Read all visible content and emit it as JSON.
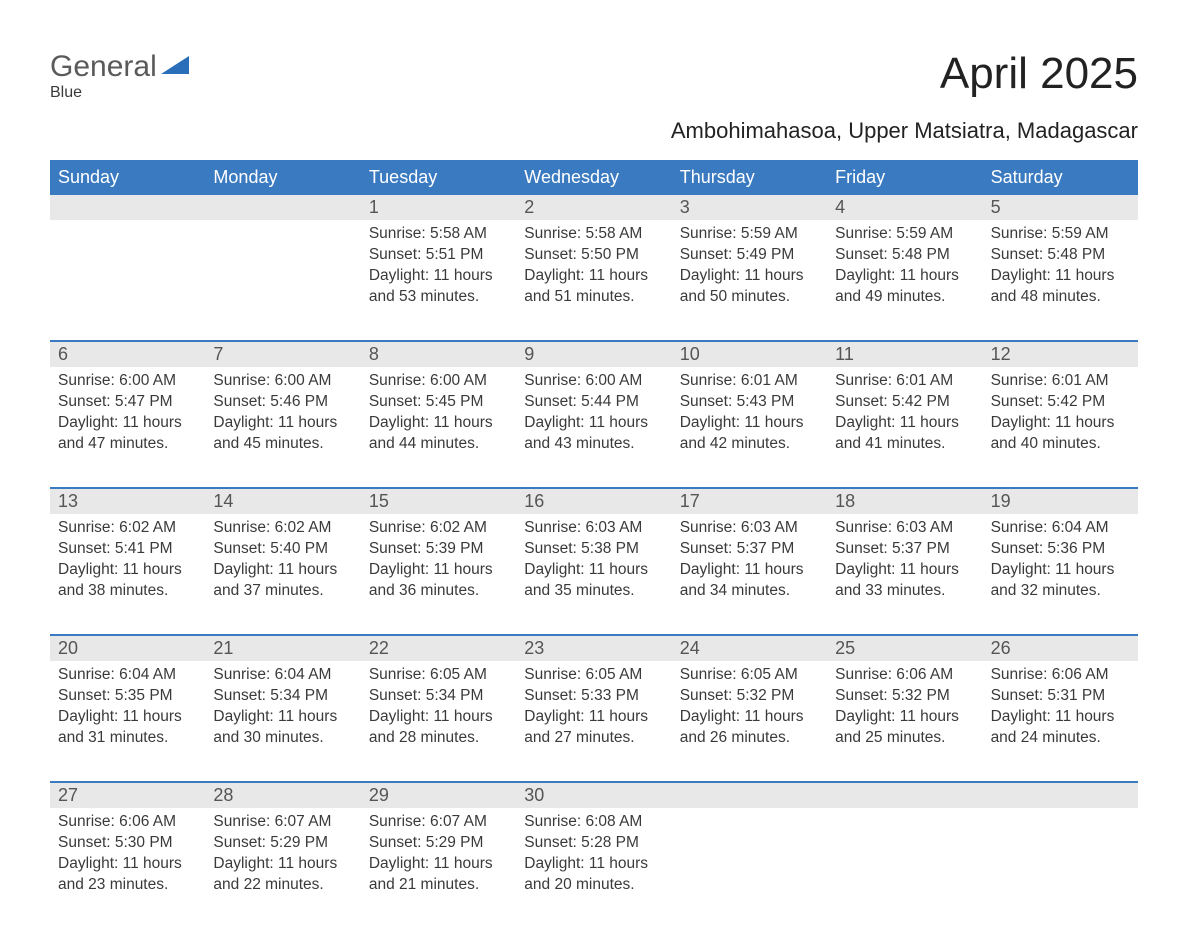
{
  "logo": {
    "general": "General",
    "blue": "Blue"
  },
  "title": "April 2025",
  "subtitle": "Ambohimahasoa, Upper Matsiatra, Madagascar",
  "colors": {
    "header_bg": "#3a7ac0",
    "header_text": "#ffffff",
    "row_border": "#3a7ac0",
    "daynum_bg": "#e8e8e8",
    "text": "#3a3a3a",
    "logo_gray": "#5a5a5a",
    "logo_blue": "#2a6db8",
    "page_bg": "#ffffff"
  },
  "fonts": {
    "title_pt": 44,
    "subtitle_pt": 22,
    "dayheader_pt": 18,
    "daynum_pt": 18,
    "cell_pt": 15.5,
    "family": "Segoe UI, Arial, sans-serif"
  },
  "day_names": [
    "Sunday",
    "Monday",
    "Tuesday",
    "Wednesday",
    "Thursday",
    "Friday",
    "Saturday"
  ],
  "labels": {
    "sunrise": "Sunrise: ",
    "sunset": "Sunset: ",
    "daylight": "Daylight: "
  },
  "weeks": [
    [
      null,
      null,
      {
        "n": "1",
        "sunrise": "5:58 AM",
        "sunset": "5:51 PM",
        "daylight": "11 hours and 53 minutes."
      },
      {
        "n": "2",
        "sunrise": "5:58 AM",
        "sunset": "5:50 PM",
        "daylight": "11 hours and 51 minutes."
      },
      {
        "n": "3",
        "sunrise": "5:59 AM",
        "sunset": "5:49 PM",
        "daylight": "11 hours and 50 minutes."
      },
      {
        "n": "4",
        "sunrise": "5:59 AM",
        "sunset": "5:48 PM",
        "daylight": "11 hours and 49 minutes."
      },
      {
        "n": "5",
        "sunrise": "5:59 AM",
        "sunset": "5:48 PM",
        "daylight": "11 hours and 48 minutes."
      }
    ],
    [
      {
        "n": "6",
        "sunrise": "6:00 AM",
        "sunset": "5:47 PM",
        "daylight": "11 hours and 47 minutes."
      },
      {
        "n": "7",
        "sunrise": "6:00 AM",
        "sunset": "5:46 PM",
        "daylight": "11 hours and 45 minutes."
      },
      {
        "n": "8",
        "sunrise": "6:00 AM",
        "sunset": "5:45 PM",
        "daylight": "11 hours and 44 minutes."
      },
      {
        "n": "9",
        "sunrise": "6:00 AM",
        "sunset": "5:44 PM",
        "daylight": "11 hours and 43 minutes."
      },
      {
        "n": "10",
        "sunrise": "6:01 AM",
        "sunset": "5:43 PM",
        "daylight": "11 hours and 42 minutes."
      },
      {
        "n": "11",
        "sunrise": "6:01 AM",
        "sunset": "5:42 PM",
        "daylight": "11 hours and 41 minutes."
      },
      {
        "n": "12",
        "sunrise": "6:01 AM",
        "sunset": "5:42 PM",
        "daylight": "11 hours and 40 minutes."
      }
    ],
    [
      {
        "n": "13",
        "sunrise": "6:02 AM",
        "sunset": "5:41 PM",
        "daylight": "11 hours and 38 minutes."
      },
      {
        "n": "14",
        "sunrise": "6:02 AM",
        "sunset": "5:40 PM",
        "daylight": "11 hours and 37 minutes."
      },
      {
        "n": "15",
        "sunrise": "6:02 AM",
        "sunset": "5:39 PM",
        "daylight": "11 hours and 36 minutes."
      },
      {
        "n": "16",
        "sunrise": "6:03 AM",
        "sunset": "5:38 PM",
        "daylight": "11 hours and 35 minutes."
      },
      {
        "n": "17",
        "sunrise": "6:03 AM",
        "sunset": "5:37 PM",
        "daylight": "11 hours and 34 minutes."
      },
      {
        "n": "18",
        "sunrise": "6:03 AM",
        "sunset": "5:37 PM",
        "daylight": "11 hours and 33 minutes."
      },
      {
        "n": "19",
        "sunrise": "6:04 AM",
        "sunset": "5:36 PM",
        "daylight": "11 hours and 32 minutes."
      }
    ],
    [
      {
        "n": "20",
        "sunrise": "6:04 AM",
        "sunset": "5:35 PM",
        "daylight": "11 hours and 31 minutes."
      },
      {
        "n": "21",
        "sunrise": "6:04 AM",
        "sunset": "5:34 PM",
        "daylight": "11 hours and 30 minutes."
      },
      {
        "n": "22",
        "sunrise": "6:05 AM",
        "sunset": "5:34 PM",
        "daylight": "11 hours and 28 minutes."
      },
      {
        "n": "23",
        "sunrise": "6:05 AM",
        "sunset": "5:33 PM",
        "daylight": "11 hours and 27 minutes."
      },
      {
        "n": "24",
        "sunrise": "6:05 AM",
        "sunset": "5:32 PM",
        "daylight": "11 hours and 26 minutes."
      },
      {
        "n": "25",
        "sunrise": "6:06 AM",
        "sunset": "5:32 PM",
        "daylight": "11 hours and 25 minutes."
      },
      {
        "n": "26",
        "sunrise": "6:06 AM",
        "sunset": "5:31 PM",
        "daylight": "11 hours and 24 minutes."
      }
    ],
    [
      {
        "n": "27",
        "sunrise": "6:06 AM",
        "sunset": "5:30 PM",
        "daylight": "11 hours and 23 minutes."
      },
      {
        "n": "28",
        "sunrise": "6:07 AM",
        "sunset": "5:29 PM",
        "daylight": "11 hours and 22 minutes."
      },
      {
        "n": "29",
        "sunrise": "6:07 AM",
        "sunset": "5:29 PM",
        "daylight": "11 hours and 21 minutes."
      },
      {
        "n": "30",
        "sunrise": "6:08 AM",
        "sunset": "5:28 PM",
        "daylight": "11 hours and 20 minutes."
      },
      null,
      null,
      null
    ]
  ]
}
